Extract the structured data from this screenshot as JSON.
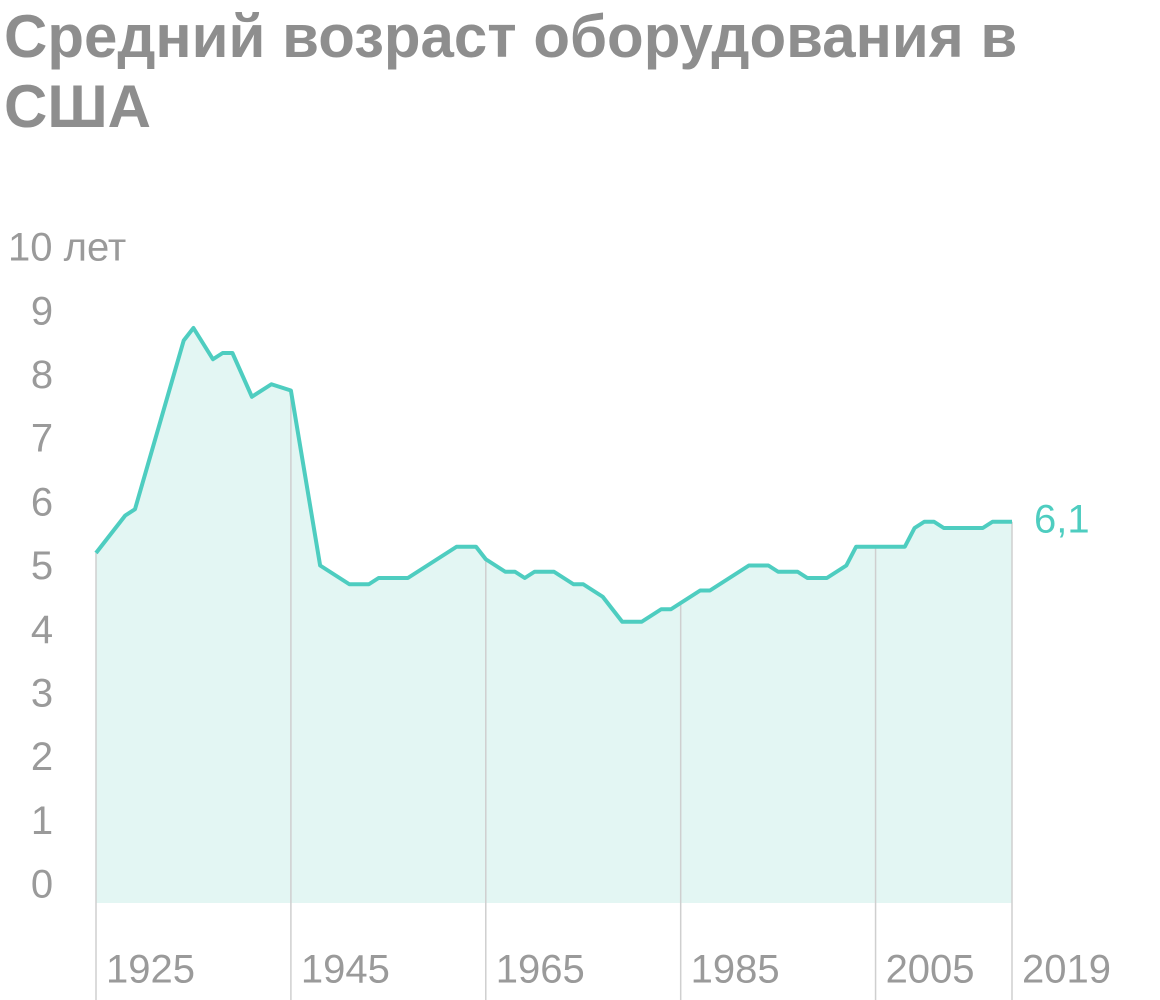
{
  "chart_data": {
    "type": "area",
    "title": "Средний возраст оборудования в США",
    "x": [
      1925,
      1928,
      1929,
      1934,
      1935,
      1937,
      1938,
      1939,
      1941,
      1943,
      1945,
      1948,
      1951,
      1953,
      1954,
      1957,
      1962,
      1964,
      1965,
      1967,
      1968,
      1969,
      1970,
      1972,
      1974,
      1975,
      1977,
      1979,
      1981,
      1983,
      1984,
      1987,
      1988,
      1992,
      1994,
      1995,
      1997,
      1998,
      2000,
      2002,
      2003,
      2005,
      2008,
      2009,
      2010,
      2011,
      2012,
      2016,
      2017,
      2019
    ],
    "series": [
      {
        "color": "#4ecdc0",
        "fill": "#e3f6f3",
        "values": [
          5.6,
          6.2,
          6.3,
          9.0,
          9.2,
          8.7,
          8.8,
          8.8,
          8.1,
          8.3,
          8.2,
          5.4,
          5.1,
          5.1,
          5.2,
          5.2,
          5.7,
          5.7,
          5.5,
          5.3,
          5.3,
          5.2,
          5.3,
          5.3,
          5.1,
          5.1,
          4.9,
          4.5,
          4.5,
          4.7,
          4.7,
          5.0,
          5.0,
          5.4,
          5.4,
          5.3,
          5.3,
          5.2,
          5.2,
          5.4,
          5.7,
          5.7,
          5.7,
          6.0,
          6.1,
          6.1,
          6.0,
          6.0,
          6.1,
          6.1
        ],
        "value_labels": [
          null,
          null,
          null,
          null,
          null,
          null,
          null,
          null,
          null,
          null,
          null,
          null,
          null,
          null,
          null,
          null,
          null,
          null,
          null,
          null,
          null,
          null,
          null,
          null,
          null,
          null,
          null,
          null,
          null,
          null,
          null,
          null,
          null,
          null,
          null,
          null,
          null,
          null,
          null,
          null,
          null,
          null,
          null,
          null,
          null,
          null,
          null,
          null,
          null,
          "6,1"
        ]
      }
    ],
    "xlim": [
      1925,
      2019
    ],
    "xticks": [
      1925,
      1945,
      1965,
      1985,
      2005,
      2019
    ],
    "ylim": [
      0,
      10
    ],
    "yticks": [
      0,
      1,
      2,
      3,
      4,
      5,
      6,
      7,
      8,
      9,
      {
        "value": 10,
        "label": "10 лет"
      }
    ]
  }
}
